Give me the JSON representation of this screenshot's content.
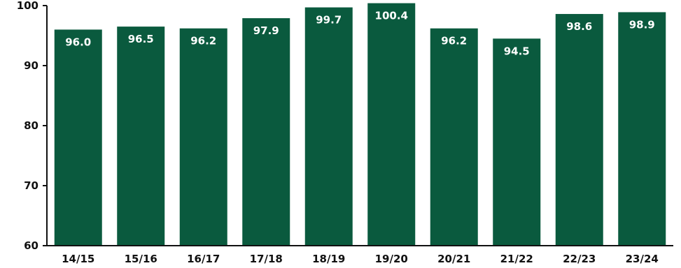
{
  "chart_data": {
    "type": "bar",
    "categories": [
      "14/15",
      "15/16",
      "16/17",
      "17/18",
      "18/19",
      "19/20",
      "20/21",
      "21/22",
      "22/23",
      "23/24"
    ],
    "values": [
      96.0,
      96.5,
      96.2,
      97.9,
      99.7,
      100.4,
      96.2,
      94.5,
      98.6,
      98.9
    ],
    "value_labels": [
      "96.0",
      "96.5",
      "96.2",
      "97.9",
      "99.7",
      "100.4",
      "96.2",
      "94.5",
      "98.6",
      "98.9"
    ],
    "yticks": [
      "60",
      "70",
      "80",
      "90",
      "100"
    ],
    "ylim": [
      60,
      100
    ],
    "bar_color": "#0a5a3e",
    "grid": false,
    "legend": "none"
  }
}
